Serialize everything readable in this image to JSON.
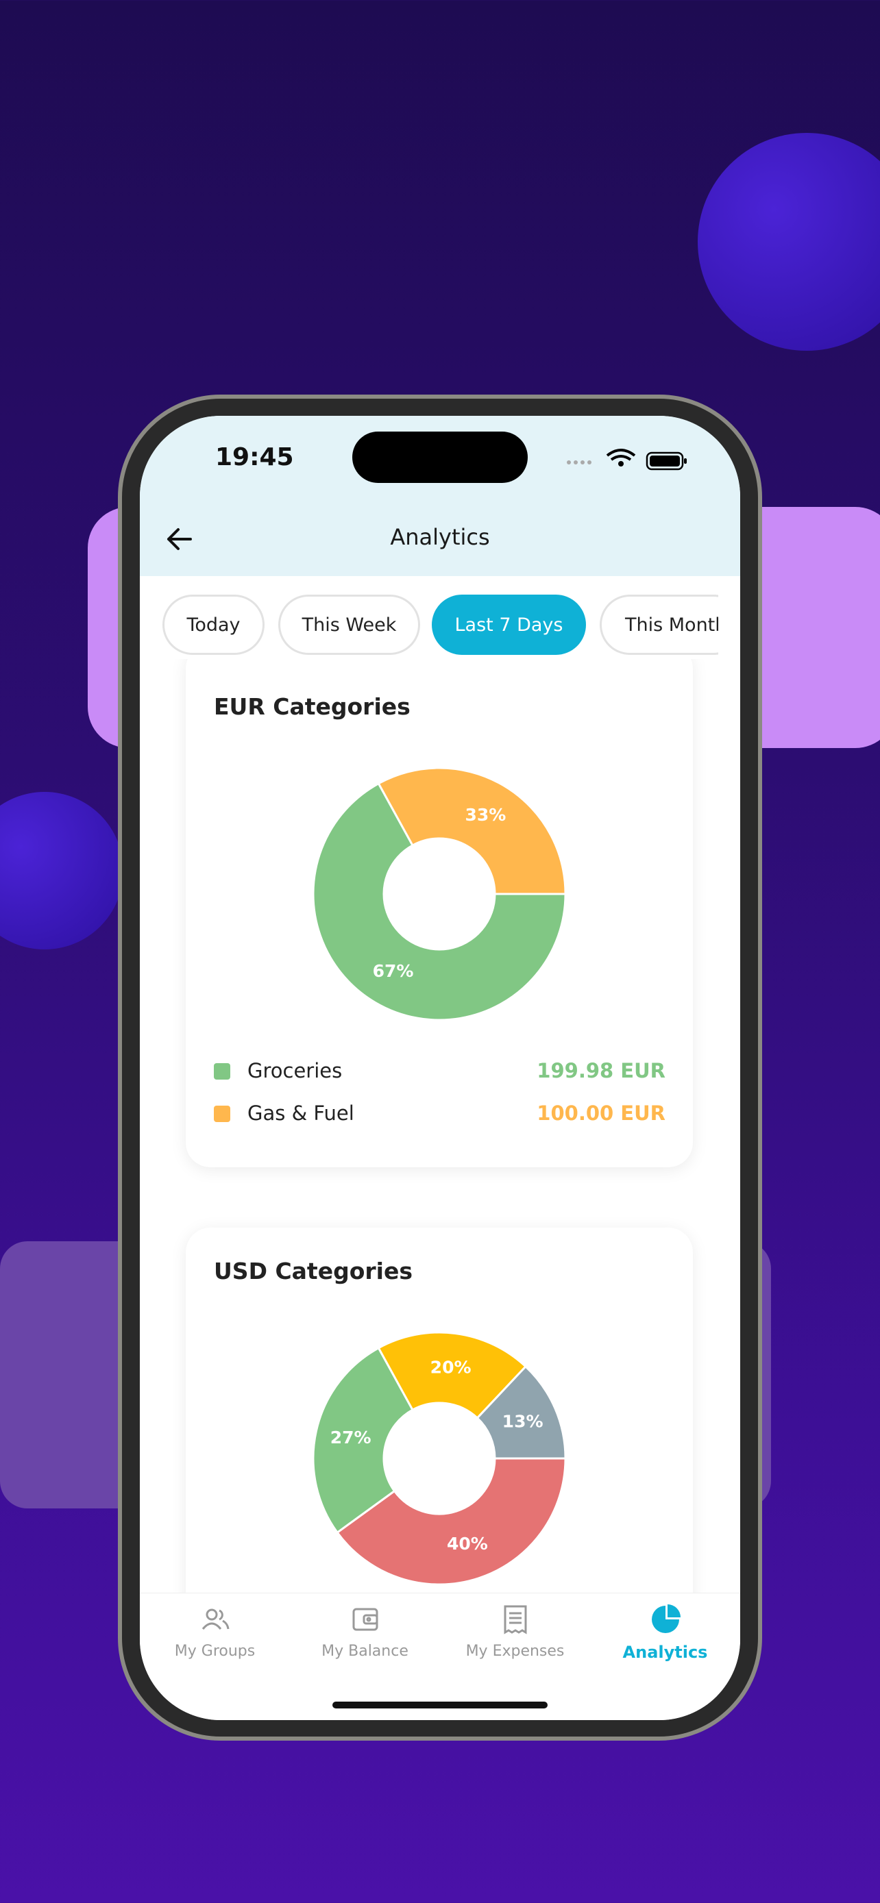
{
  "status_bar": {
    "time": "19:45"
  },
  "header": {
    "title": "Analytics"
  },
  "filters": {
    "tabs": [
      "Today",
      "This Week",
      "Last 7 Days",
      "This Month"
    ],
    "selected": 2
  },
  "chart_data": [
    {
      "type": "pie",
      "title": "EUR Categories",
      "categories": [
        "Groceries",
        "Gas & Fuel"
      ],
      "values": [
        67,
        33
      ],
      "value_labels": [
        "67%",
        "33%"
      ],
      "colors": [
        "#81c784",
        "#ffb74d"
      ],
      "amounts": [
        "199.98 EUR",
        "100.00 EUR"
      ]
    },
    {
      "type": "pie",
      "title": "USD Categories",
      "values": [
        40,
        27,
        20,
        13
      ],
      "value_labels": [
        "40%",
        "27%",
        "20%",
        "13%"
      ],
      "colors": [
        "#e57373",
        "#81c784",
        "#ffc107",
        "#90a4ae"
      ]
    }
  ],
  "nav": {
    "items": [
      "My Groups",
      "My Balance",
      "My Expenses",
      "Analytics"
    ],
    "active": 3
  }
}
